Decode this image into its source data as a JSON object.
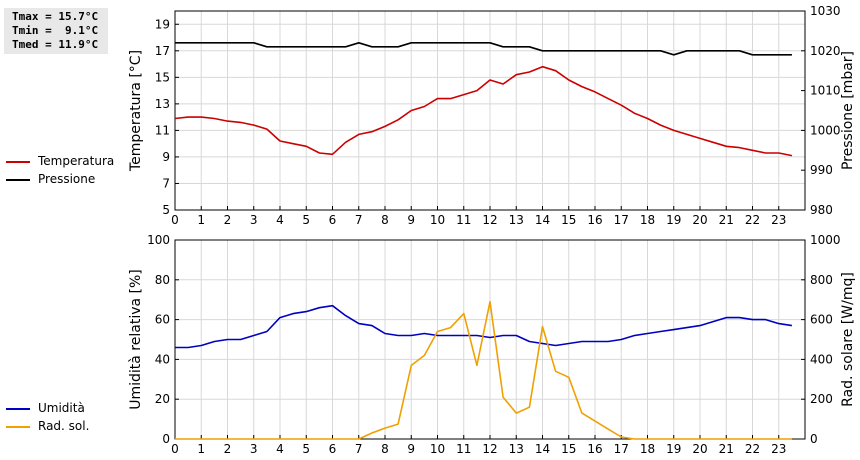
{
  "stats": {
    "tmax": "Tmax = 15.7°C",
    "tmin": "Tmin =  9.1°C",
    "tmed": "Tmed = 11.9°C"
  },
  "legend_top": [
    {
      "label": "Temperatura",
      "color": "#cc0000"
    },
    {
      "label": "Pressione",
      "color": "#000000"
    }
  ],
  "legend_bottom": [
    {
      "label": "Umidità",
      "color": "#0000c0"
    },
    {
      "label": "Rad. sol.",
      "color": "#f0a000"
    }
  ],
  "chart_data": [
    {
      "type": "line",
      "xlabel": "",
      "ylabel": "Temperatura [°C]",
      "y2label": "Pressione [mbar]",
      "xlim": [
        0,
        24
      ],
      "xticks": [
        0,
        1,
        2,
        3,
        4,
        5,
        6,
        7,
        8,
        9,
        10,
        11,
        12,
        13,
        14,
        15,
        16,
        17,
        18,
        19,
        20,
        21,
        22,
        23
      ],
      "ylim": [
        5,
        20
      ],
      "yticks": [
        5,
        7,
        9,
        11,
        13,
        15,
        17,
        19
      ],
      "y2lim": [
        980,
        1030
      ],
      "y2ticks": [
        980,
        990,
        1000,
        1010,
        1020,
        1030
      ],
      "grid": true,
      "series": [
        {
          "name": "Temperatura",
          "axis": "left",
          "color": "#cc0000",
          "x": [
            0,
            0.5,
            1,
            1.5,
            2,
            2.5,
            3,
            3.5,
            4,
            4.5,
            5,
            5.5,
            6,
            6.5,
            7,
            7.5,
            8,
            8.5,
            9,
            9.5,
            10,
            10.5,
            11,
            11.5,
            12,
            12.5,
            13,
            13.5,
            14,
            14.5,
            15,
            15.5,
            16,
            16.5,
            17,
            17.5,
            18,
            18.5,
            19,
            19.5,
            20,
            20.5,
            21,
            21.5,
            22,
            22.5,
            23,
            23.5
          ],
          "values": [
            11.9,
            12.0,
            12.0,
            11.9,
            11.7,
            11.6,
            11.4,
            11.1,
            10.2,
            10.0,
            9.8,
            9.3,
            9.2,
            10.1,
            10.7,
            10.9,
            11.3,
            11.8,
            12.5,
            12.8,
            13.4,
            13.4,
            13.7,
            14.0,
            14.8,
            14.5,
            15.2,
            15.4,
            15.8,
            15.5,
            14.8,
            14.3,
            13.9,
            13.4,
            12.9,
            12.3,
            11.9,
            11.4,
            11.0,
            10.7,
            10.4,
            10.1,
            9.8,
            9.7,
            9.5,
            9.3,
            9.3,
            9.1
          ]
        },
        {
          "name": "Pressione",
          "axis": "right",
          "color": "#000000",
          "x": [
            0,
            0.5,
            1,
            1.5,
            2,
            2.5,
            3,
            3.5,
            4,
            4.5,
            5,
            5.5,
            6,
            6.5,
            7,
            7.5,
            8,
            8.5,
            9,
            9.5,
            10,
            10.5,
            11,
            11.5,
            12,
            12.5,
            13,
            13.5,
            14,
            14.5,
            15,
            15.5,
            16,
            16.5,
            17,
            17.5,
            18,
            18.5,
            19,
            19.5,
            20,
            20.5,
            21,
            21.5,
            22,
            22.5,
            23,
            23.5
          ],
          "values": [
            1022,
            1022,
            1022,
            1022,
            1022,
            1022,
            1022,
            1021,
            1021,
            1021,
            1021,
            1021,
            1021,
            1021,
            1022,
            1021,
            1021,
            1021,
            1022,
            1022,
            1022,
            1022,
            1022,
            1022,
            1022,
            1021,
            1021,
            1021,
            1020,
            1020,
            1020,
            1020,
            1020,
            1020,
            1020,
            1020,
            1020,
            1020,
            1019,
            1020,
            1020,
            1020,
            1020,
            1020,
            1019,
            1019,
            1019,
            1019
          ]
        }
      ]
    },
    {
      "type": "line",
      "xlabel": "",
      "ylabel": "Umidità relativa [%]",
      "y2label": "Rad. solare [W/mq]",
      "xlim": [
        0,
        24
      ],
      "xticks": [
        0,
        1,
        2,
        3,
        4,
        5,
        6,
        7,
        8,
        9,
        10,
        11,
        12,
        13,
        14,
        15,
        16,
        17,
        18,
        19,
        20,
        21,
        22,
        23
      ],
      "ylim": [
        0,
        100
      ],
      "yticks": [
        0,
        20,
        40,
        60,
        80,
        100
      ],
      "y2lim": [
        0,
        1000
      ],
      "y2ticks": [
        0,
        200,
        400,
        600,
        800,
        1000
      ],
      "grid": true,
      "series": [
        {
          "name": "Umidità",
          "axis": "left",
          "color": "#0000c0",
          "x": [
            0,
            0.5,
            1,
            1.5,
            2,
            2.5,
            3,
            3.5,
            4,
            4.5,
            5,
            5.5,
            6,
            6.5,
            7,
            7.5,
            8,
            8.5,
            9,
            9.5,
            10,
            10.5,
            11,
            11.5,
            12,
            12.5,
            13,
            13.5,
            14,
            14.5,
            15,
            15.5,
            16,
            16.5,
            17,
            17.5,
            18,
            18.5,
            19,
            19.5,
            20,
            20.5,
            21,
            21.5,
            22,
            22.5,
            23,
            23.5
          ],
          "values": [
            46,
            46,
            47,
            49,
            50,
            50,
            52,
            54,
            61,
            63,
            64,
            66,
            67,
            62,
            58,
            57,
            53,
            52,
            52,
            53,
            52,
            52,
            52,
            52,
            51,
            52,
            52,
            49,
            48,
            47,
            48,
            49,
            49,
            49,
            50,
            52,
            53,
            54,
            55,
            56,
            57,
            59,
            61,
            61,
            60,
            60,
            58,
            57
          ]
        },
        {
          "name": "Rad. sol.",
          "axis": "right",
          "color": "#f0a000",
          "x": [
            0,
            0.5,
            1,
            1.5,
            2,
            2.5,
            3,
            3.5,
            4,
            4.5,
            5,
            5.5,
            6,
            6.5,
            7,
            7.5,
            8,
            8.5,
            9,
            9.5,
            10,
            10.5,
            11,
            11.5,
            12,
            12.5,
            13,
            13.5,
            14,
            14.5,
            15,
            15.5,
            16,
            16.5,
            17,
            17.5,
            18,
            18.5,
            19,
            19.5,
            20,
            20.5,
            21,
            21.5,
            22,
            22.5,
            23,
            23.5
          ],
          "values": [
            0,
            0,
            0,
            0,
            0,
            0,
            0,
            0,
            0,
            0,
            0,
            0,
            0,
            0,
            0,
            30,
            55,
            75,
            370,
            420,
            540,
            560,
            630,
            370,
            690,
            210,
            130,
            160,
            565,
            340,
            310,
            130,
            90,
            50,
            10,
            0,
            0,
            0,
            0,
            0,
            0,
            0,
            0,
            0,
            0,
            0,
            0,
            0
          ]
        }
      ]
    }
  ]
}
